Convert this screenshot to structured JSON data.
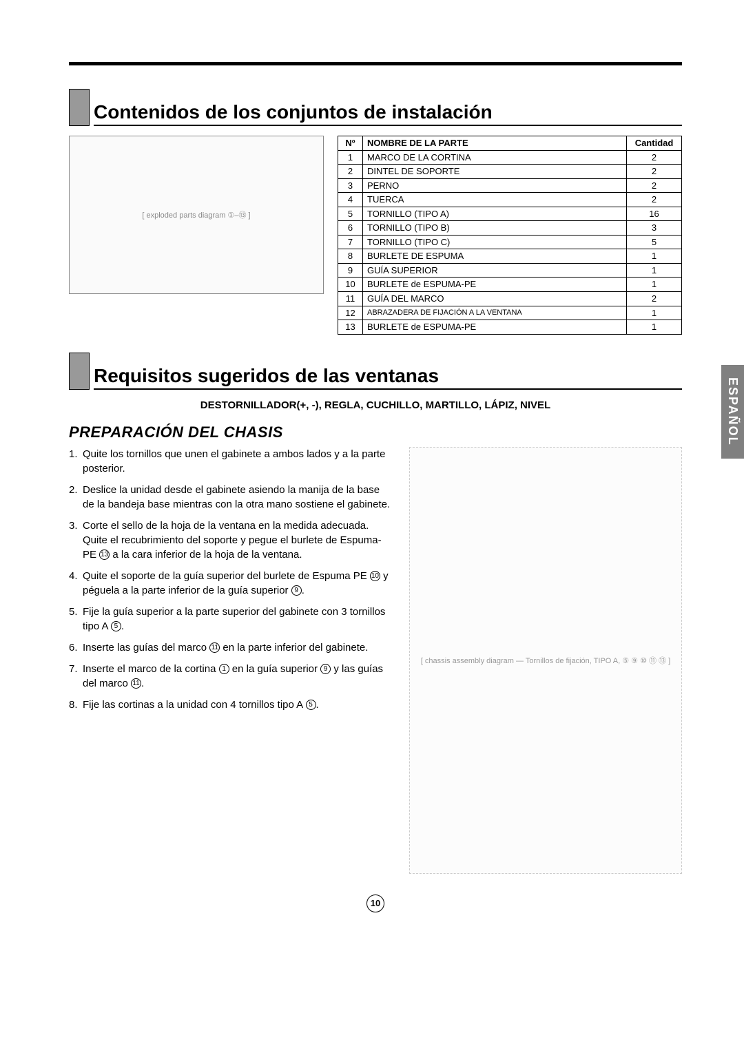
{
  "page_number": "10",
  "side_tab": "ESPAÑOL",
  "section1": {
    "title": "Contenidos de los conjuntos de instalación",
    "table": {
      "headers": {
        "num": "Nº",
        "name": "NOMBRE DE LA PARTE",
        "qty": "Cantidad"
      },
      "rows": [
        {
          "num": "1",
          "name": "MARCO DE LA CORTINA",
          "qty": "2"
        },
        {
          "num": "2",
          "name": "DINTEL DE SOPORTE",
          "qty": "2"
        },
        {
          "num": "3",
          "name": "PERNO",
          "qty": "2"
        },
        {
          "num": "4",
          "name": "TUERCA",
          "qty": "2"
        },
        {
          "num": "5",
          "name": "TORNILLO (TIPO A)",
          "qty": "16"
        },
        {
          "num": "6",
          "name": "TORNILLO (TIPO B)",
          "qty": "3"
        },
        {
          "num": "7",
          "name": "TORNILLO (TIPO C)",
          "qty": "5"
        },
        {
          "num": "8",
          "name": "BURLETE DE ESPUMA",
          "qty": "1"
        },
        {
          "num": "9",
          "name": "GUÍA SUPERIOR",
          "qty": "1"
        },
        {
          "num": "10",
          "name": "BURLETE de ESPUMA-PE",
          "qty": "1"
        },
        {
          "num": "11",
          "name": "GUÍA DEL MARCO",
          "qty": "2"
        },
        {
          "num": "12",
          "name": "ABRAZADERA DE FIJACIÓN A LA VENTANA",
          "qty": "1"
        },
        {
          "num": "13",
          "name": "BURLETE de ESPUMA-PE",
          "qty": "1"
        }
      ]
    },
    "diagram_placeholder": "[ exploded parts diagram ①–⑬ ]"
  },
  "section2": {
    "title": "Requisitos sugeridos de las ventanas",
    "tools_line": "DESTORNILLADOR(+, -), REGLA, CUCHILLO, MARTILLO, LÁPIZ, NIVEL",
    "subheading": "PREPARACIÓN DEL CHASIS",
    "steps": [
      "Quite los tornillos que unen el gabinete a ambos lados y a la parte posterior.",
      "Deslice la unidad desde el gabinete asiendo la manija de la base de la bandeja base mientras con la otra mano sostiene el gabinete.",
      "Corte el sello de la hoja de la ventana en la medida adecuada.  Quite el recubrimiento del soporte y pegue el burlete de Espuma-PE ⑬  a la cara inferior de la hoja de la ventana.",
      "Quite el soporte de la guía superior del burlete de Espuma PE ⑩ y péguela a la parte inferior de la guía superior ⑨.",
      "Fije la guía superior a la parte superior del gabinete con 3 tornillos tipo A ⑤.",
      "Inserte las guías del marco ⑪ en la parte inferior del gabinete.",
      "Inserte el marco de la cortina ① en la guía superior ⑨ y las guías del marco ⑪.",
      "Fije las cortinas a la unidad con 4 tornillos tipo A ⑤."
    ],
    "assembly_placeholder": "[ chassis assembly diagram — Tornillos de fijación, TIPO A, ⑤ ⑨ ⑩ ⑪ ⑬ ]"
  },
  "colors": {
    "tab_gray": "#999999",
    "side_tab_bg": "#808080",
    "rule": "#000000"
  }
}
